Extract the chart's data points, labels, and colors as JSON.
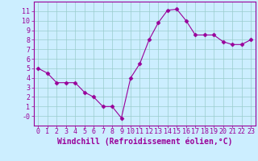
{
  "x": [
    0,
    1,
    2,
    3,
    4,
    5,
    6,
    7,
    8,
    9,
    10,
    11,
    12,
    13,
    14,
    15,
    16,
    17,
    18,
    19,
    20,
    21,
    22,
    23
  ],
  "y": [
    5.0,
    4.5,
    3.5,
    3.5,
    3.5,
    2.5,
    2.0,
    1.0,
    1.0,
    -0.2,
    4.0,
    5.5,
    8.0,
    9.8,
    11.1,
    11.2,
    10.0,
    8.5,
    8.5,
    8.5,
    7.8,
    7.5,
    7.5,
    8.0
  ],
  "line_color": "#990099",
  "marker": "D",
  "marker_size": 2.5,
  "bg_color": "#cceeff",
  "grid_color": "#99cccc",
  "xlabel": "Windchill (Refroidissement éolien,°C)",
  "xlabel_color": "#990099",
  "xlim": [
    -0.5,
    23.5
  ],
  "ylim": [
    -1.0,
    12.0
  ],
  "yticks": [
    0,
    1,
    2,
    3,
    4,
    5,
    6,
    7,
    8,
    9,
    10,
    11
  ],
  "ytick_labels": [
    "-0",
    "1",
    "2",
    "3",
    "4",
    "5",
    "6",
    "7",
    "8",
    "9",
    "10",
    "11"
  ],
  "xticks": [
    0,
    1,
    2,
    3,
    4,
    5,
    6,
    7,
    8,
    9,
    10,
    11,
    12,
    13,
    14,
    15,
    16,
    17,
    18,
    19,
    20,
    21,
    22,
    23
  ],
  "tick_fontsize": 6,
  "xlabel_fontsize": 7
}
